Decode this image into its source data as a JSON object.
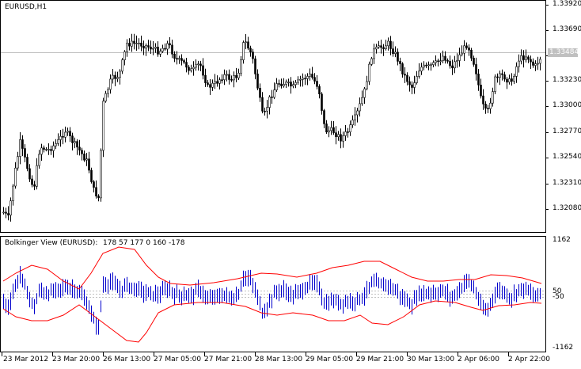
{
  "main_chart": {
    "title": "EURUSD,H1",
    "price_axis": [
      "1.33920",
      "1.33690",
      "1.33484",
      "1.33230",
      "1.33000",
      "1.32770",
      "1.32540",
      "1.32310",
      "1.32080"
    ],
    "bid_tag": "1.33484"
  },
  "indicator": {
    "title": "Bolkinger View (EURUSD):",
    "values": "178 57 177 0 160 -178",
    "axis": [
      "1162",
      "50",
      "-50",
      "-1162"
    ]
  },
  "time_axis": [
    "23 Mar 2012",
    "23 Mar 20:00",
    "26 Mar 13:00",
    "27 Mar 05:00",
    "27 Mar 21:00",
    "28 Mar 13:00",
    "29 Mar 05:00",
    "29 Mar 21:00",
    "30 Mar 13:00",
    "2 Apr 06:00",
    "2 Apr 22:00"
  ],
  "colors": {
    "background": "#ffffff",
    "grid_frame": "#000000",
    "bid_line": "#c0c0c0",
    "bands": "#ff0000",
    "histogram": "#0000cc",
    "levels": "#c0c0c0"
  }
}
